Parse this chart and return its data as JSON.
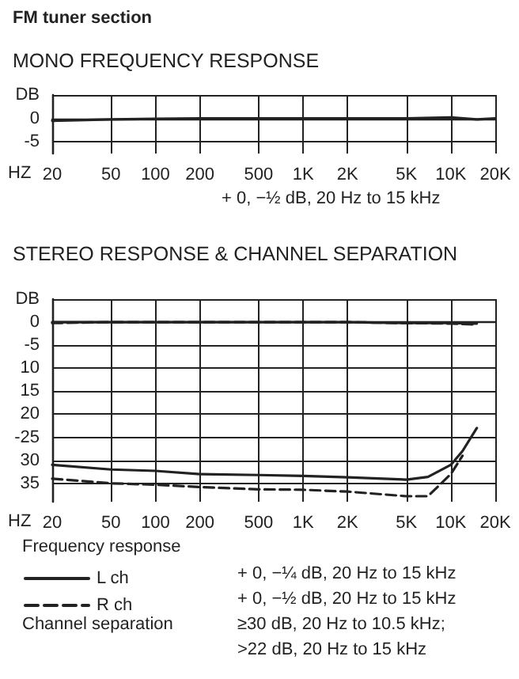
{
  "chart_data": [
    {
      "type": "line",
      "title": "FM tuner section",
      "subtitle": "MONO FREQUENCY RESPONSE",
      "xlabel": "HZ",
      "x": [
        20,
        50,
        100,
        200,
        500,
        1000,
        2000,
        5000,
        10000,
        15000,
        20000
      ],
      "series": [
        {
          "color": "#222222",
          "line_style": "solid",
          "values": [
            -0.5,
            -0.2,
            -0.1,
            0,
            0,
            0,
            0,
            0,
            0.2,
            -0.2,
            0
          ]
        }
      ],
      "log": "x",
      "xlim": [
        20,
        20000
      ],
      "xticks": [
        20,
        50,
        100,
        200,
        500,
        {
          "value": 1000,
          "label": "1K"
        },
        {
          "value": 2000,
          "label": "2K"
        },
        {
          "value": 5000,
          "label": "5K"
        },
        {
          "value": 10000,
          "label": "10K"
        },
        {
          "value": 20000,
          "label": "20K"
        }
      ],
      "ylim": [
        -7.5,
        5
      ],
      "yticks": [
        {
          "value": 5,
          "label": "DB"
        },
        0,
        -5
      ],
      "grid": true,
      "marker": "none",
      "legend": false,
      "annotations": [
        "+ 0, −½ dB, 20 Hz to 15 kHz"
      ]
    },
    {
      "type": "line",
      "title": "STEREO RESPONSE & CHANNEL SEPARATION",
      "xlabel": "HZ",
      "legend_title": "Frequency response",
      "x": [
        20,
        50,
        100,
        200,
        500,
        1000,
        2000,
        5000,
        10000,
        15000
      ],
      "series": [
        {
          "name": "L ch",
          "color": "#222222",
          "line_style": "solid",
          "values": [
            0,
            0,
            0,
            0,
            0,
            0,
            0,
            -0.2,
            -0.2,
            -0.3
          ]
        },
        {
          "name": "R ch",
          "color": "#222222",
          "line_style": "dashed",
          "values": [
            -0.2,
            0,
            0,
            0,
            0,
            0,
            0,
            -0.2,
            -0.3,
            -0.5
          ]
        },
        {
          "color": "#222222",
          "line_style": "solid",
          "x": [
            20,
            50,
            100,
            200,
            500,
            1000,
            2000,
            5000,
            7000,
            10000,
            12000,
            15000
          ],
          "values": [
            -31,
            -32,
            -32.3,
            -33,
            -33.2,
            -33.4,
            -33.7,
            -34.2,
            -33.6,
            -31,
            -28,
            -23
          ]
        },
        {
          "color": "#222222",
          "line_style": "dashed",
          "x": [
            20,
            50,
            100,
            200,
            500,
            1000,
            2000,
            5000,
            7000,
            10000,
            12000
          ],
          "values": [
            -34,
            -35,
            -35.3,
            -35.8,
            -36.3,
            -36.4,
            -36.8,
            -37.8,
            -37.8,
            -33,
            -29
          ]
        }
      ],
      "log": "x",
      "xlim": [
        20,
        20000
      ],
      "xticks": [
        20,
        50,
        100,
        200,
        500,
        {
          "value": 1000,
          "label": "1K"
        },
        {
          "value": 2000,
          "label": "2K"
        },
        {
          "value": 5000,
          "label": "5K"
        },
        {
          "value": 10000,
          "label": "10K"
        },
        {
          "value": 20000,
          "label": "20K"
        }
      ],
      "ylim": [
        -39,
        5
      ],
      "yticks": [
        {
          "value": 5,
          "label": "DB"
        },
        0,
        -5,
        {
          "value": -10,
          "label": "10"
        },
        {
          "value": -15,
          "label": "15"
        },
        {
          "value": -20,
          "label": "20"
        },
        -25,
        {
          "value": -30,
          "label": "30"
        },
        {
          "value": -35,
          "label": "35"
        }
      ],
      "grid": true,
      "marker": "none",
      "legend": "bottom left",
      "annotations": [
        "+ 0, −¼ dB, 20 Hz to 15 kHz",
        "+ 0, −½ dB, 20 Hz to 15 kHz",
        "Channel separation",
        "≥30 dB, 20 Hz to 10.5 kHz;",
        ">22 dB, 20 Hz to 15 kHz"
      ]
    }
  ]
}
